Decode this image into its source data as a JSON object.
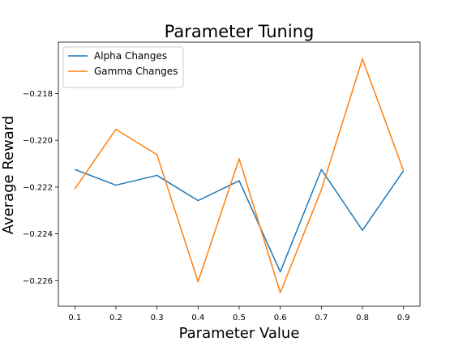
{
  "chart_data": {
    "type": "line",
    "title": "Parameter Tuning",
    "xlabel": "Parameter Value",
    "ylabel": "Average Reward",
    "x": [
      0.1,
      0.2,
      0.3,
      0.4,
      0.5,
      0.6,
      0.7,
      0.8,
      0.9
    ],
    "x_tick_labels": [
      "0.1",
      "0.2",
      "0.3",
      "0.4",
      "0.5",
      "0.6",
      "0.7",
      "0.8",
      "0.9"
    ],
    "xlim": [
      0.06,
      0.94
    ],
    "ylim": [
      -0.2271,
      -0.2158
    ],
    "y_ticks": [
      -0.226,
      -0.224,
      -0.222,
      -0.22,
      -0.218
    ],
    "y_tick_labels": [
      "−0.226",
      "−0.224",
      "−0.222",
      "−0.220",
      "−0.218"
    ],
    "grid": false,
    "legend_position": "top-left",
    "series": [
      {
        "name": "Alpha Changes",
        "color": "#1f77b4",
        "values": [
          -0.22125,
          -0.22192,
          -0.2215,
          -0.22258,
          -0.22173,
          -0.22563,
          -0.22125,
          -0.22385,
          -0.2213
        ]
      },
      {
        "name": "Gamma Changes",
        "color": "#ff7f0e",
        "values": [
          -0.22208,
          -0.21953,
          -0.22062,
          -0.22605,
          -0.22079,
          -0.22652,
          -0.22212,
          -0.21652,
          -0.2213
        ]
      }
    ]
  }
}
